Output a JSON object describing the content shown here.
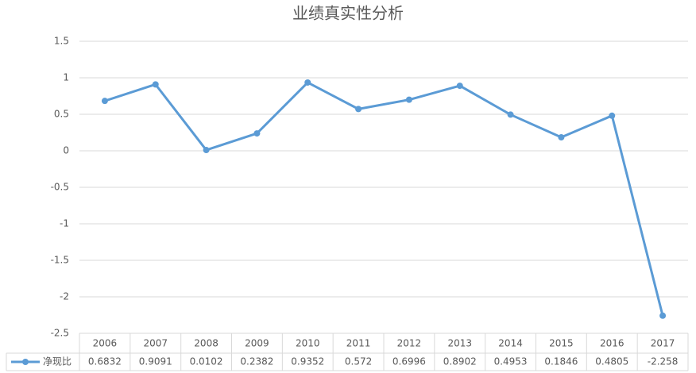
{
  "chart_data": {
    "type": "line",
    "title": "业绩真实性分析",
    "categories": [
      "2006",
      "2007",
      "2008",
      "2009",
      "2010",
      "2011",
      "2012",
      "2013",
      "2014",
      "2015",
      "2016",
      "2017"
    ],
    "series": [
      {
        "name": "净现比",
        "color": "#5b9bd5",
        "values": [
          0.6832,
          0.9091,
          0.0102,
          0.2382,
          0.9352,
          0.572,
          0.6996,
          0.8902,
          0.4953,
          0.1846,
          0.4805,
          -2.258
        ]
      }
    ],
    "ylim": [
      -2.5,
      1.5
    ],
    "yticks": [
      -2.5,
      -2,
      -1.5,
      -1,
      -0.5,
      0,
      0.5,
      1,
      1.5
    ],
    "grid": true,
    "data_table": true
  }
}
